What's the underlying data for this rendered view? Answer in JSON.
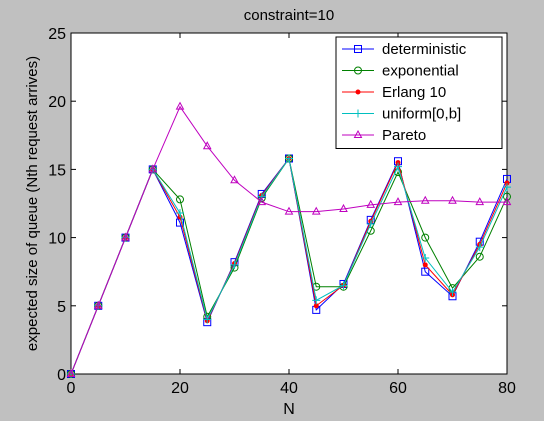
{
  "chart_data": {
    "type": "line",
    "title": "constraint=10",
    "xlabel": "N",
    "ylabel": "expected size of queue (Nth request arrives)",
    "xlim": [
      0,
      80
    ],
    "ylim": [
      0,
      25
    ],
    "xticks": [
      0,
      20,
      40,
      60,
      80
    ],
    "yticks": [
      0,
      5,
      10,
      15,
      20,
      25
    ],
    "grid": false,
    "legend_position": "top-right",
    "x": [
      0,
      5,
      10,
      15,
      20,
      25,
      30,
      35,
      40,
      45,
      50,
      55,
      60,
      65,
      70,
      75,
      80
    ],
    "series": [
      {
        "name": "deterministic",
        "color": "#0000ff",
        "marker": "square",
        "values": [
          0,
          5,
          10,
          15,
          11.1,
          3.8,
          8.2,
          13.2,
          15.8,
          4.7,
          6.6,
          11.3,
          15.6,
          7.5,
          5.7,
          9.7,
          14.3
        ]
      },
      {
        "name": "exponential",
        "color": "#008000",
        "marker": "circle",
        "values": [
          0,
          5,
          10,
          15,
          12.8,
          4.2,
          7.8,
          12.9,
          15.8,
          6.4,
          6.4,
          10.5,
          14.8,
          10.0,
          6.3,
          8.6,
          13.0
        ]
      },
      {
        "name": "Erlang 10",
        "color": "#ff0000",
        "marker": "dot",
        "values": [
          0,
          5,
          10,
          15,
          11.5,
          3.9,
          8.1,
          13.1,
          15.8,
          5.0,
          6.5,
          11.2,
          15.5,
          8.0,
          5.8,
          9.5,
          14.0
        ]
      },
      {
        "name": "uniform[0,b]",
        "color": "#00bfbf",
        "marker": "plus",
        "values": [
          0,
          5,
          10,
          15,
          11.8,
          4.0,
          8.0,
          13.0,
          15.8,
          5.4,
          6.5,
          11.0,
          15.2,
          8.5,
          6.0,
          9.3,
          13.7
        ]
      },
      {
        "name": "Pareto",
        "color": "#bf00bf",
        "marker": "triangle",
        "values": [
          0,
          5,
          10,
          15,
          19.6,
          16.7,
          14.2,
          12.6,
          11.9,
          11.9,
          12.1,
          12.4,
          12.6,
          12.7,
          12.7,
          12.6,
          12.6
        ]
      }
    ]
  }
}
